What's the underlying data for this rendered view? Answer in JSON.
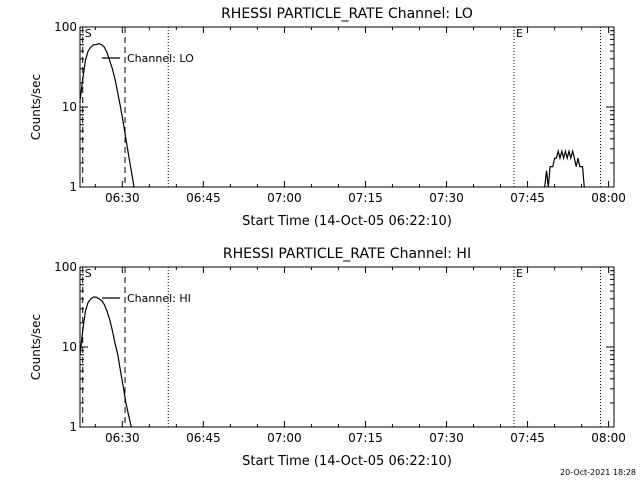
{
  "footer": {
    "timestamp": "20-Oct-2021 18:28"
  },
  "chart_data": [
    {
      "type": "line",
      "title": "RHESSI PARTICLE_RATE Channel: LO",
      "xlabel": "Start Time (14-Oct-05 06:22:10)",
      "ylabel": "Counts/sec",
      "yscale": "log",
      "ylim": [
        1,
        100
      ],
      "xlim": [
        "06:22:10",
        "08:01:00"
      ],
      "xticks": [
        "06:30",
        "06:45",
        "07:00",
        "07:15",
        "07:30",
        "07:45",
        "08:00"
      ],
      "yticks": [
        "1",
        "10",
        "100"
      ],
      "legend": {
        "label": "Channel: LO",
        "position": "top-left"
      },
      "markers": [
        {
          "time": "06:22:40",
          "style": "dashed",
          "label": "S"
        },
        {
          "time": "06:30:30",
          "style": "dashed",
          "label": ""
        },
        {
          "time": "06:38:30",
          "style": "dotted",
          "label": ""
        },
        {
          "time": "07:42:30",
          "style": "dotted",
          "label": "E"
        },
        {
          "time": "07:58:30",
          "style": "dotted",
          "label": ""
        }
      ],
      "series": [
        {
          "name": "Channel: LO",
          "segments": [
            [
              [
                "06:22:10",
                12
              ],
              [
                "06:22:40",
                22
              ],
              [
                "06:23:10",
                38
              ],
              [
                "06:23:40",
                50
              ],
              [
                "06:24:10",
                56
              ],
              [
                "06:24:40",
                60
              ],
              [
                "06:25:10",
                60
              ],
              [
                "06:25:40",
                62
              ],
              [
                "06:26:10",
                60
              ],
              [
                "06:26:40",
                56
              ],
              [
                "06:27:10",
                48
              ],
              [
                "06:27:40",
                38
              ],
              [
                "06:28:10",
                30
              ],
              [
                "06:28:40",
                22
              ],
              [
                "06:29:10",
                15
              ],
              [
                "06:29:40",
                10
              ],
              [
                "06:30:10",
                6.5
              ],
              [
                "06:30:40",
                4
              ],
              [
                "06:31:10",
                2.5
              ],
              [
                "06:31:40",
                1.6
              ],
              [
                "06:32:10",
                1
              ]
            ],
            [
              [
                "07:48:10",
                1
              ],
              [
                "07:48:30",
                1.6
              ],
              [
                "07:48:50",
                1
              ],
              [
                "07:49:10",
                1.8
              ],
              [
                "07:49:40",
                1.8
              ],
              [
                "07:50:00",
                2.3
              ],
              [
                "07:50:20",
                2.3
              ],
              [
                "07:50:40",
                2.8
              ],
              [
                "07:51:00",
                2.3
              ],
              [
                "07:51:20",
                2.8
              ],
              [
                "07:51:40",
                2.3
              ],
              [
                "07:52:00",
                2.8
              ],
              [
                "07:52:20",
                2.3
              ],
              [
                "07:52:40",
                2.8
              ],
              [
                "07:53:00",
                2.3
              ],
              [
                "07:53:20",
                2.8
              ],
              [
                "07:53:40",
                2.3
              ],
              [
                "07:54:00",
                1.8
              ],
              [
                "07:54:20",
                2.3
              ],
              [
                "07:54:40",
                1.8
              ],
              [
                "07:55:10",
                1.8
              ],
              [
                "07:55:30",
                1
              ]
            ]
          ]
        }
      ]
    },
    {
      "type": "line",
      "title": "RHESSI PARTICLE_RATE Channel: HI",
      "xlabel": "Start Time (14-Oct-05 06:22:10)",
      "ylabel": "Counts/sec",
      "yscale": "log",
      "ylim": [
        1,
        100
      ],
      "xlim": [
        "06:22:10",
        "08:01:00"
      ],
      "xticks": [
        "06:30",
        "06:45",
        "07:00",
        "07:15",
        "07:30",
        "07:45",
        "08:00"
      ],
      "yticks": [
        "1",
        "10",
        "100"
      ],
      "legend": {
        "label": "Channel: HI",
        "position": "top-left"
      },
      "markers": [
        {
          "time": "06:22:40",
          "style": "dashed",
          "label": "S"
        },
        {
          "time": "06:30:30",
          "style": "dashed",
          "label": ""
        },
        {
          "time": "06:38:30",
          "style": "dotted",
          "label": ""
        },
        {
          "time": "07:42:30",
          "style": "dotted",
          "label": "E"
        },
        {
          "time": "07:58:30",
          "style": "dotted",
          "label": ""
        }
      ],
      "series": [
        {
          "name": "Channel: HI",
          "segments": [
            [
              [
                "06:22:10",
                8
              ],
              [
                "06:22:40",
                16
              ],
              [
                "06:23:10",
                28
              ],
              [
                "06:23:40",
                36
              ],
              [
                "06:24:10",
                40
              ],
              [
                "06:24:40",
                42
              ],
              [
                "06:25:10",
                42
              ],
              [
                "06:25:40",
                40
              ],
              [
                "06:26:10",
                38
              ],
              [
                "06:26:40",
                34
              ],
              [
                "06:27:10",
                28
              ],
              [
                "06:27:40",
                22
              ],
              [
                "06:28:10",
                16
              ],
              [
                "06:28:40",
                11
              ],
              [
                "06:29:10",
                8
              ],
              [
                "06:29:40",
                5
              ],
              [
                "06:30:10",
                3.2
              ],
              [
                "06:30:40",
                2
              ],
              [
                "06:31:10",
                1.4
              ],
              [
                "06:31:40",
                1
              ]
            ]
          ]
        }
      ]
    }
  ]
}
